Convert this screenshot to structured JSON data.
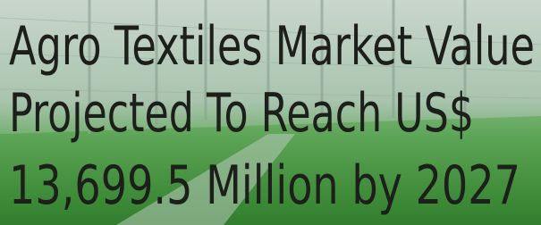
{
  "headline": {
    "lines": [
      "Agro Textiles Market Value",
      "Projected To Reach US$",
      "13,699.5 Million by 2027"
    ]
  }
}
